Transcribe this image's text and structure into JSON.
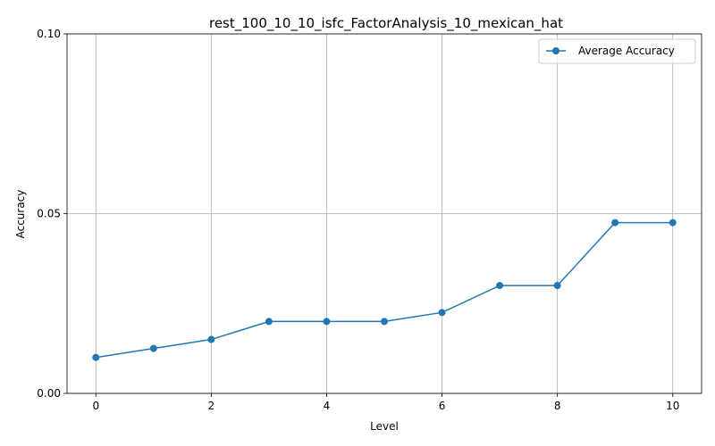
{
  "chart_data": {
    "type": "line",
    "title": "rest_100_10_10_isfc_FactorAnalysis_10_mexican_hat",
    "xlabel": "Level",
    "ylabel": "Accuracy",
    "xlim": [
      -0.5,
      10.5
    ],
    "ylim": [
      0.0,
      0.1
    ],
    "xticks": [
      0,
      2,
      4,
      6,
      8,
      10
    ],
    "xtick_labels": [
      "0",
      "2",
      "4",
      "6",
      "8",
      "10"
    ],
    "yticks": [
      0.0,
      0.05,
      0.1
    ],
    "ytick_labels": [
      "0.00",
      "0.05",
      "0.10"
    ],
    "grid": true,
    "legend_position": "top-right",
    "series": [
      {
        "name": "Average Accuracy",
        "color": "#1f77b4",
        "marker": "circle",
        "x": [
          0,
          1,
          2,
          3,
          4,
          5,
          6,
          7,
          8,
          9,
          10
        ],
        "y": [
          0.01,
          0.0125,
          0.015,
          0.02,
          0.02,
          0.02,
          0.0225,
          0.03,
          0.03,
          0.0475,
          0.0475
        ]
      }
    ]
  }
}
